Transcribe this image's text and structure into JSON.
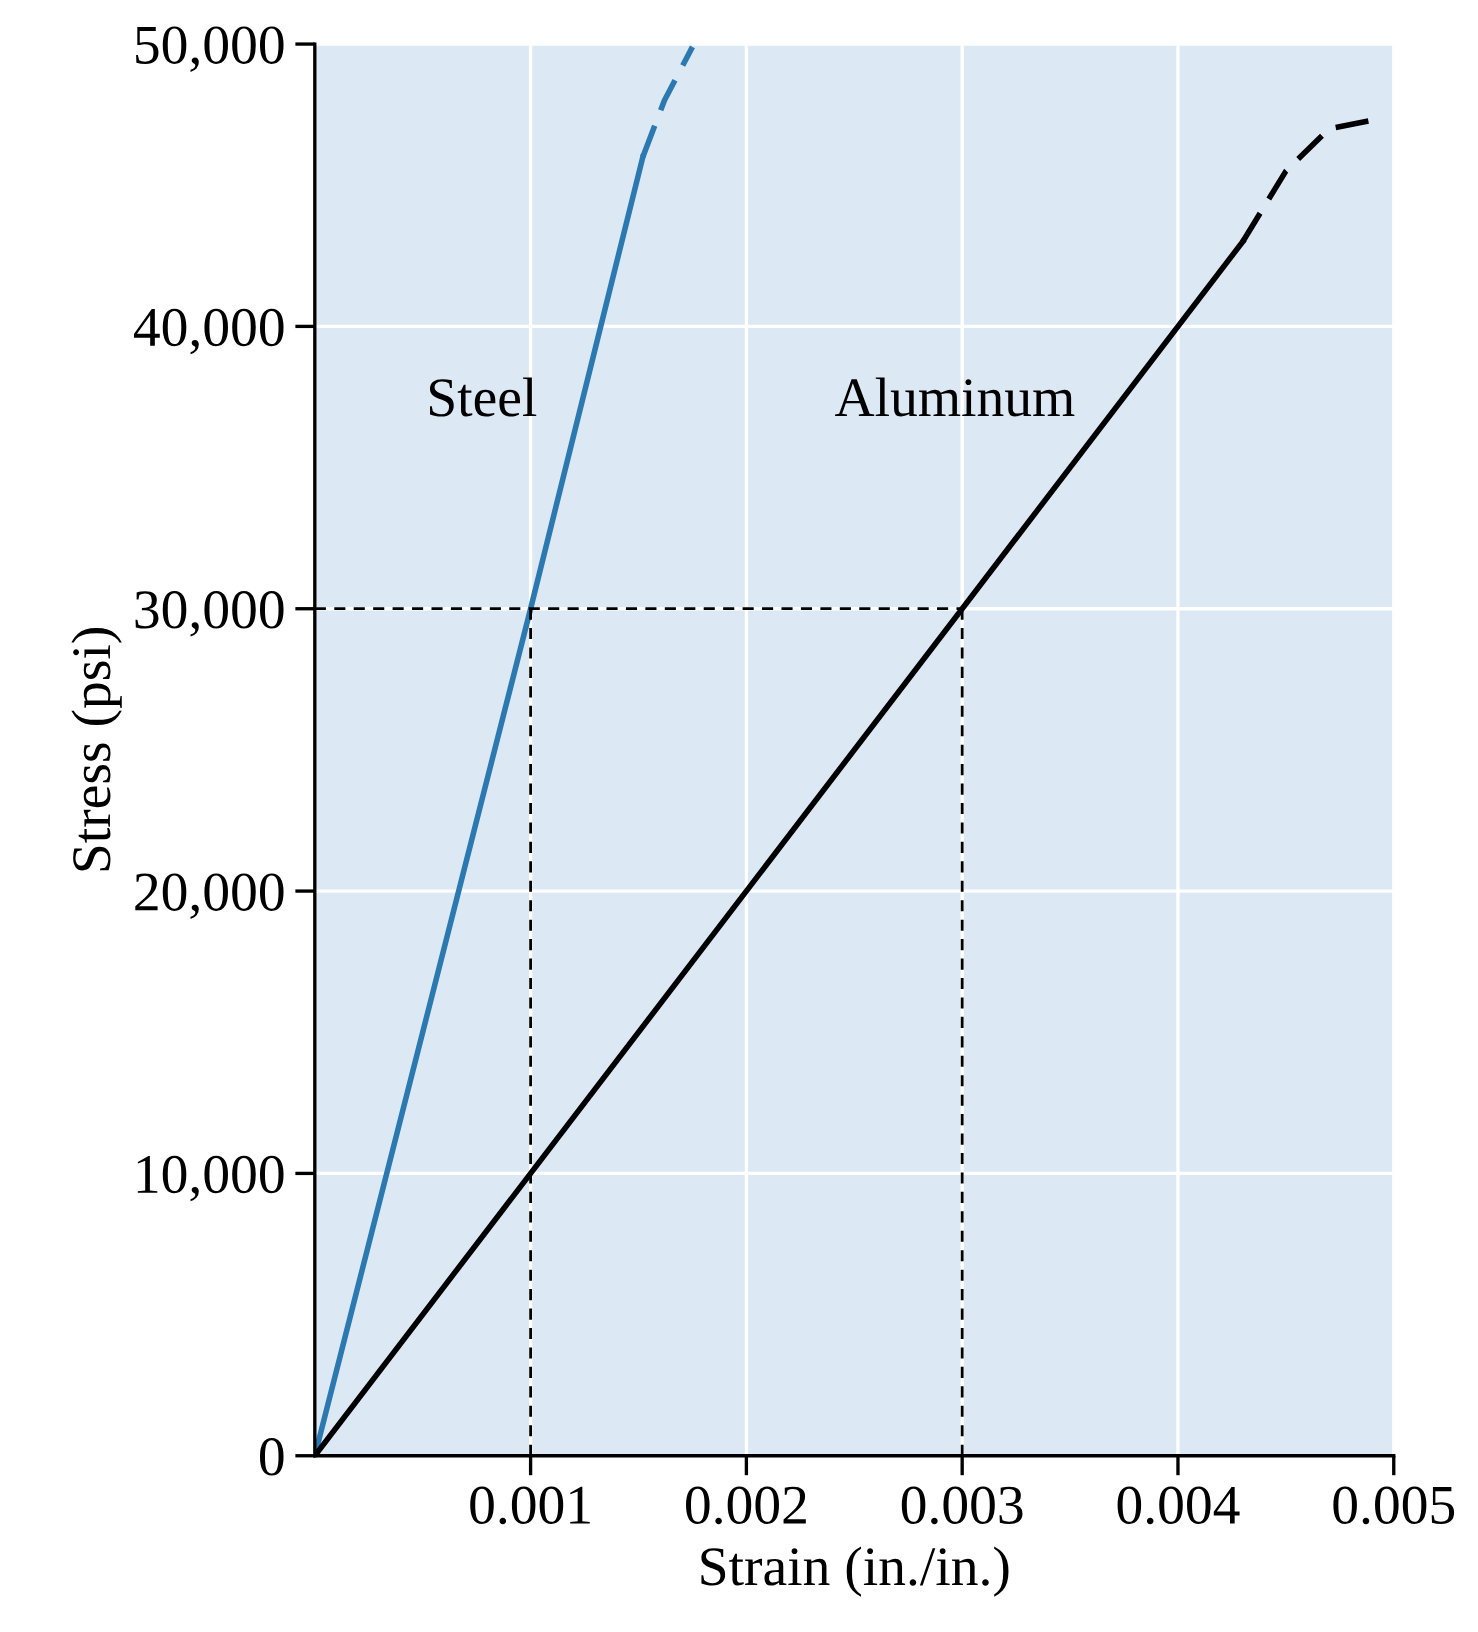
{
  "chart_data": {
    "type": "line",
    "xlabel": "Strain (in./in.)",
    "ylabel": "Stress (psi)",
    "xlim": [
      0,
      0.005
    ],
    "ylim": [
      0,
      50000
    ],
    "xticks": [
      0.001,
      0.002,
      0.003,
      0.004,
      0.005
    ],
    "yticks": [
      {
        "value": 0,
        "label": "0"
      },
      {
        "value": 10000,
        "label": "10,000"
      },
      {
        "value": 20000,
        "label": "20,000"
      },
      {
        "value": 30000,
        "label": "30,000"
      },
      {
        "value": 40000,
        "label": "40,000"
      },
      {
        "value": 50000,
        "label": "50,000"
      }
    ],
    "grid": true,
    "marker": "none",
    "series": [
      {
        "name": "Steel",
        "color": "#2b79b0",
        "line_style": "solid",
        "x": [
          0,
          0.001,
          0.00152
        ],
        "values": [
          0,
          30000,
          46000
        ]
      },
      {
        "color": "#2b79b0",
        "line_style": "dashed",
        "x": [
          0.00152,
          0.00162,
          0.00175
        ],
        "values": [
          46000,
          48000,
          49900
        ]
      },
      {
        "name": "Aluminum",
        "color": "#000000",
        "line_style": "solid",
        "x": [
          0,
          0.003,
          0.0043
        ],
        "values": [
          0,
          30000,
          43000
        ]
      },
      {
        "color": "#000000",
        "line_style": "dashed",
        "x": [
          0.0043,
          0.0045,
          0.0047,
          0.0049
        ],
        "values": [
          43000,
          45500,
          47000,
          47300
        ]
      },
      {
        "color": "#000000",
        "line_style": "dotted",
        "x": [
          0,
          0.003
        ],
        "values": [
          30000,
          30000
        ]
      },
      {
        "color": "#000000",
        "line_style": "dotted",
        "x": [
          0.001,
          0.001
        ],
        "values": [
          0,
          30000
        ]
      },
      {
        "color": "#000000",
        "line_style": "dotted",
        "x": [
          0.003,
          0.003
        ],
        "values": [
          0,
          30000
        ]
      }
    ]
  }
}
